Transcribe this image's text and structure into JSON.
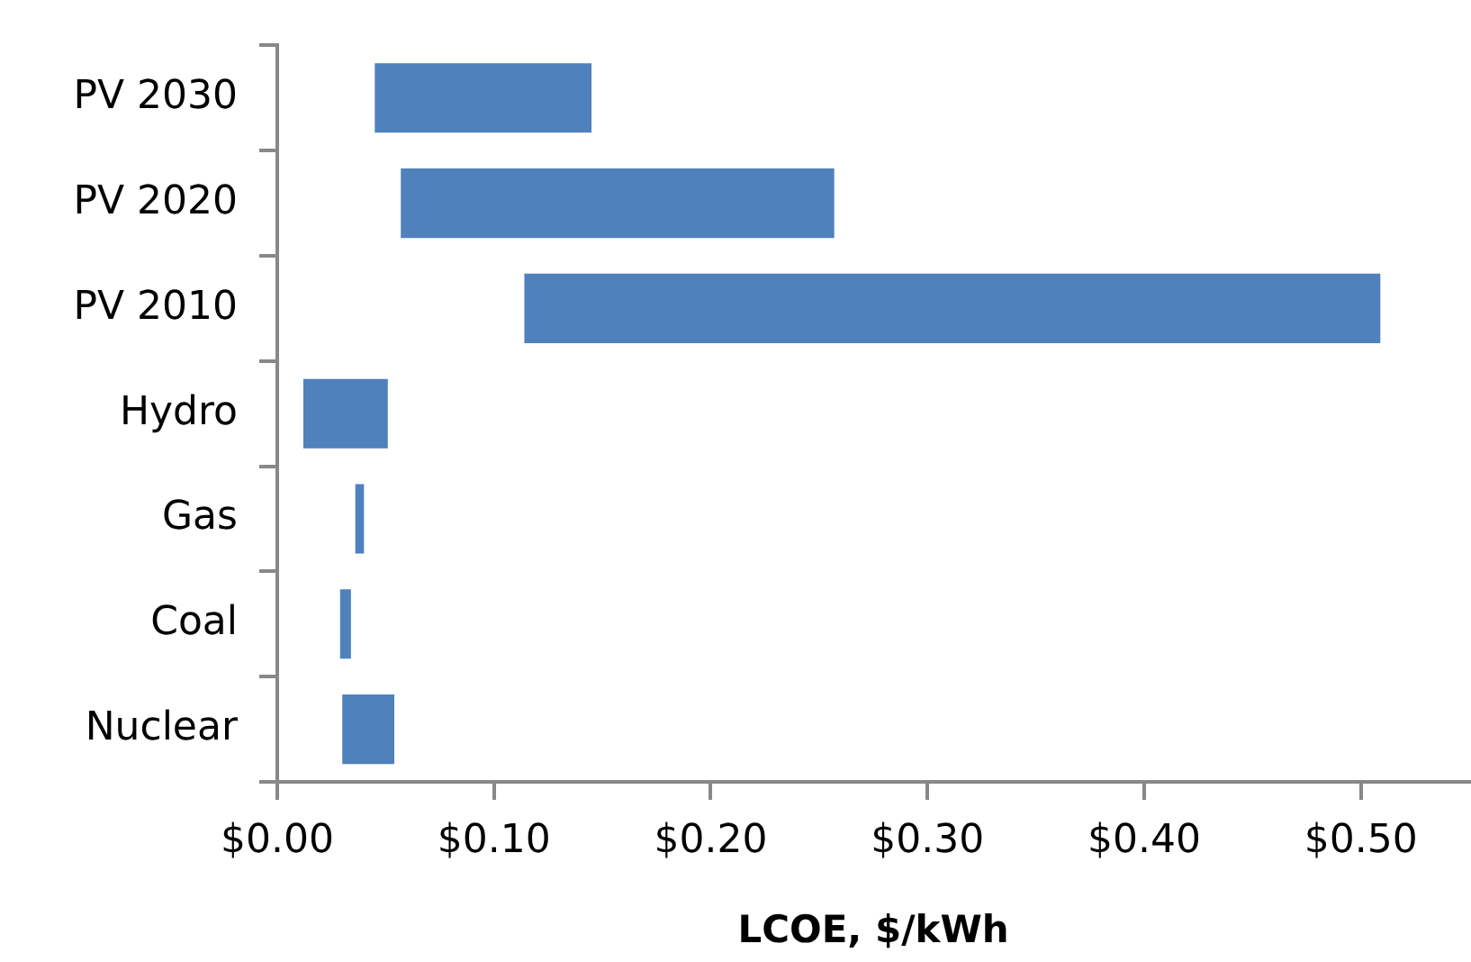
{
  "chart_data": {
    "type": "bar",
    "orientation": "horizontal",
    "xlabel": "LCOE, $/kWh",
    "categories": [
      "PV 2030",
      "PV 2020",
      "PV 2010",
      "Hydro",
      "Gas",
      "Coal",
      "Nuclear"
    ],
    "base": [
      0.045,
      0.057,
      0.114,
      0.012,
      0.036,
      0.029,
      0.03
    ],
    "values": [
      0.1,
      0.2,
      0.395,
      0.039,
      0.004,
      0.005,
      0.024
    ],
    "color": "#4f81bd",
    "xlim": [
      0,
      0.55
    ],
    "xticks": [
      {
        "value": 0,
        "label": "$0.00"
      },
      {
        "value": 0.1,
        "label": "$0.10"
      },
      {
        "value": 0.2,
        "label": "$0.20"
      },
      {
        "value": 0.3,
        "label": "$0.30"
      },
      {
        "value": 0.4,
        "label": "$0.40"
      },
      {
        "value": 0.5,
        "label": "$0.50"
      }
    ],
    "grid": false,
    "legend": false
  }
}
